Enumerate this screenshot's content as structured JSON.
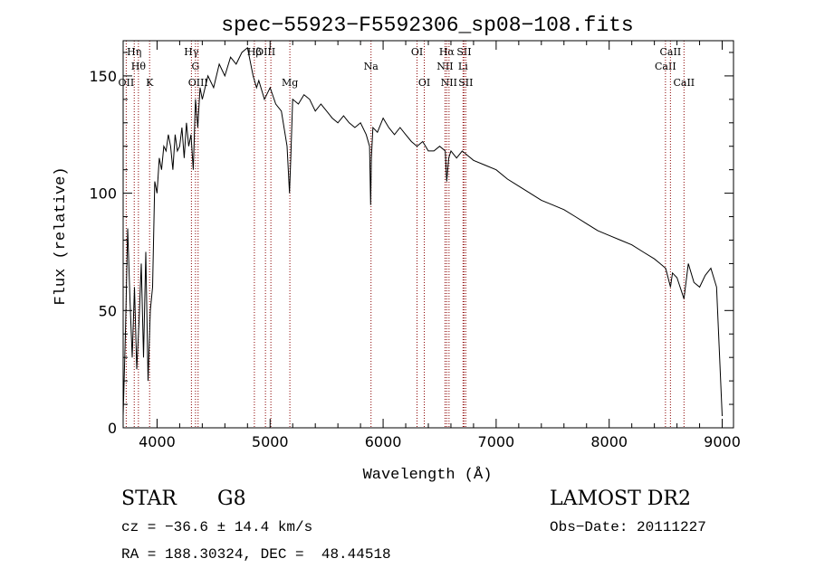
{
  "chart_data": {
    "type": "line",
    "title": "spec−55923−F5592306_sp08−108.fits",
    "xlabel": "Wavelength (Å)",
    "ylabel": "Flux (relative)",
    "xlim": [
      3700,
      9100
    ],
    "ylim": [
      0,
      165
    ],
    "xticks": [
      4000,
      5000,
      6000,
      7000,
      8000,
      9000
    ],
    "yticks": [
      0,
      50,
      100,
      150
    ],
    "grid": false,
    "series": [
      {
        "x": [
          3700,
          3720,
          3740,
          3760,
          3780,
          3800,
          3820,
          3840,
          3860,
          3880,
          3900,
          3920,
          3940,
          3960,
          3980,
          4000,
          4020,
          4040,
          4060,
          4080,
          4100,
          4120,
          4140,
          4160,
          4180,
          4200,
          4220,
          4240,
          4260,
          4280,
          4300,
          4320,
          4340,
          4360,
          4380,
          4400,
          4450,
          4500,
          4550,
          4600,
          4650,
          4700,
          4750,
          4800,
          4850,
          4880,
          4900,
          4950,
          5000,
          5050,
          5100,
          5150,
          5172,
          5183,
          5200,
          5250,
          5300,
          5350,
          5400,
          5450,
          5500,
          5550,
          5600,
          5650,
          5700,
          5750,
          5800,
          5850,
          5880,
          5890,
          5896,
          5910,
          5950,
          6000,
          6050,
          6100,
          6150,
          6200,
          6250,
          6300,
          6350,
          6400,
          6450,
          6500,
          6550,
          6563,
          6580,
          6600,
          6650,
          6700,
          6750,
          6800,
          6900,
          7000,
          7100,
          7200,
          7300,
          7400,
          7500,
          7600,
          7700,
          7800,
          7900,
          8000,
          8100,
          8200,
          8300,
          8400,
          8450,
          8500,
          8542,
          8560,
          8600,
          8662,
          8700,
          8750,
          8800,
          8850,
          8900,
          8950,
          9000
        ],
        "y": [
          5,
          40,
          85,
          55,
          30,
          60,
          25,
          45,
          70,
          30,
          75,
          20,
          50,
          60,
          105,
          100,
          115,
          110,
          120,
          118,
          125,
          120,
          110,
          125,
          118,
          120,
          128,
          115,
          130,
          120,
          125,
          110,
          140,
          128,
          145,
          140,
          150,
          145,
          155,
          150,
          158,
          155,
          160,
          162,
          150,
          145,
          148,
          140,
          145,
          138,
          135,
          120,
          100,
          115,
          140,
          138,
          142,
          140,
          135,
          138,
          135,
          132,
          130,
          133,
          130,
          128,
          130,
          125,
          120,
          95,
          115,
          128,
          126,
          132,
          128,
          125,
          128,
          125,
          122,
          120,
          122,
          118,
          118,
          120,
          118,
          105,
          115,
          118,
          115,
          118,
          116,
          114,
          112,
          110,
          106,
          103,
          100,
          97,
          95,
          93,
          90,
          87,
          84,
          82,
          80,
          78,
          75,
          72,
          70,
          68,
          60,
          66,
          64,
          55,
          70,
          62,
          60,
          65,
          68,
          60,
          5
        ]
      }
    ],
    "lines": [
      {
        "x": 3727,
        "label": "OII",
        "row": 3
      },
      {
        "x": 3798,
        "label": "Hη",
        "row": 1
      },
      {
        "x": 3835,
        "label": "Hθ",
        "row": 2
      },
      {
        "x": 3934,
        "label": "K",
        "row": 3
      },
      {
        "x": 4304,
        "label": "Hγ",
        "row": 1
      },
      {
        "x": 4340,
        "label": "G",
        "row": 2
      },
      {
        "x": 4363,
        "label": "OIII",
        "row": 3
      },
      {
        "x": 4861,
        "label": "Hβ",
        "row": 1
      },
      {
        "x": 4959,
        "label": "OIII",
        "row": 1
      },
      {
        "x": 5007,
        "label": "",
        "row": 1
      },
      {
        "x": 5175,
        "label": "Mg",
        "row": 3
      },
      {
        "x": 5893,
        "label": "Na",
        "row": 2
      },
      {
        "x": 6300,
        "label": "OI",
        "row": 1
      },
      {
        "x": 6364,
        "label": "OI",
        "row": 3
      },
      {
        "x": 6548,
        "label": "NII",
        "row": 2
      },
      {
        "x": 6563,
        "label": "Hα",
        "row": 1
      },
      {
        "x": 6583,
        "label": "NII",
        "row": 3
      },
      {
        "x": 6707,
        "label": "Li",
        "row": 2
      },
      {
        "x": 6716,
        "label": "SII",
        "row": 1
      },
      {
        "x": 6731,
        "label": "SII",
        "row": 3
      },
      {
        "x": 8498,
        "label": "CaII",
        "row": 2
      },
      {
        "x": 8542,
        "label": "CaII",
        "row": 1
      },
      {
        "x": 8662,
        "label": "CaII",
        "row": 3
      }
    ]
  },
  "info": {
    "class": "STAR",
    "subclass": "G8",
    "survey": "LAMOST DR2",
    "cz": "cz = −36.6 ± 14.4 km/s",
    "obs_date": "Obs−Date: 20111227",
    "coords": "RA = 188.30324, DEC =  48.44518"
  }
}
